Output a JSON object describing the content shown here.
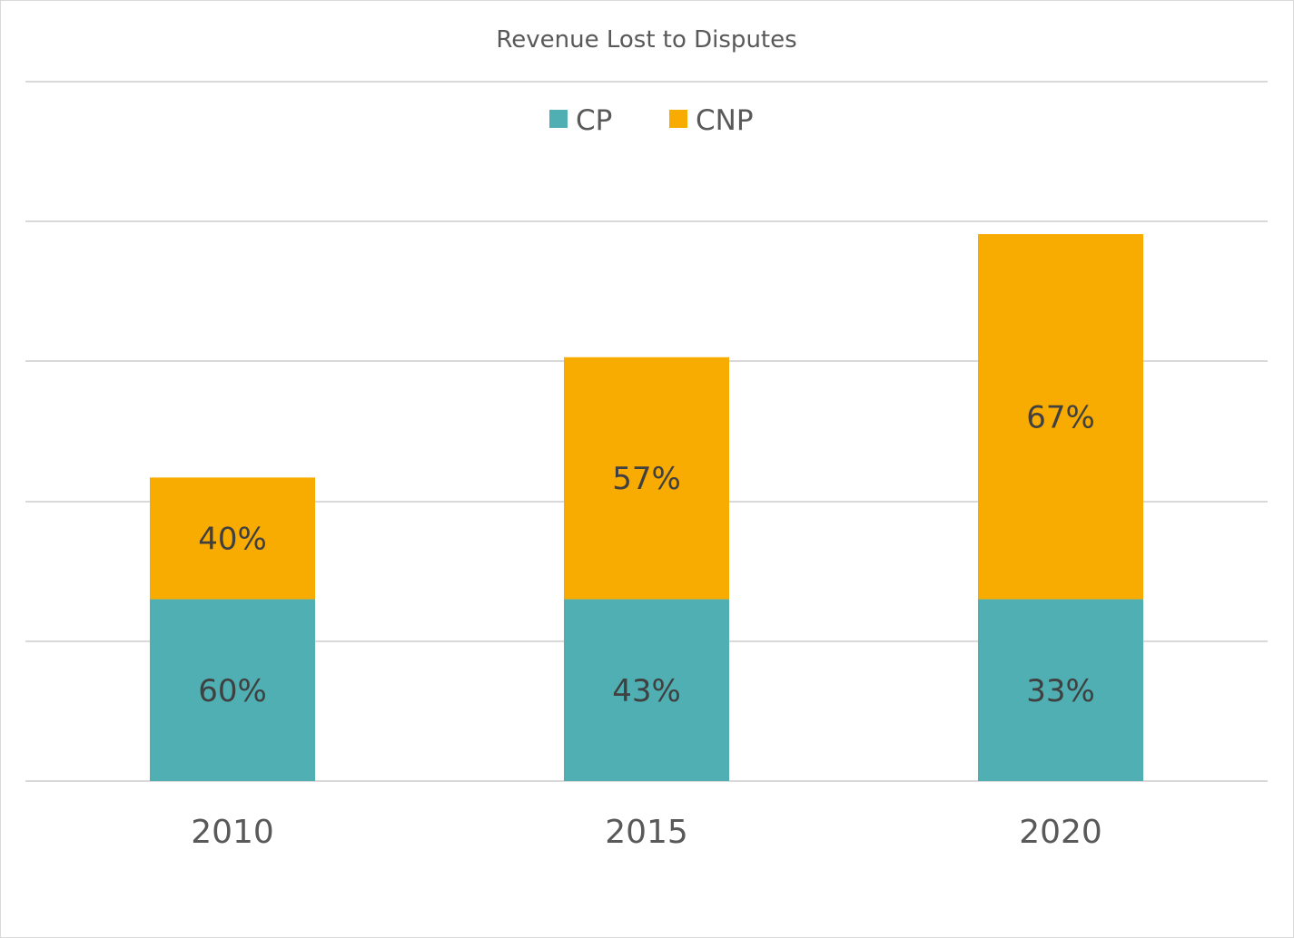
{
  "chart_data": {
    "type": "bar",
    "stacked": true,
    "title": "Revenue Lost to Disputes",
    "xlabel": "",
    "ylabel": "",
    "categories": [
      "2010",
      "2015",
      "2020"
    ],
    "series": [
      {
        "name": "CP",
        "color": "#4fafb3",
        "values": [
          1.3,
          1.3,
          1.3
        ],
        "labels": [
          "60%",
          "43%",
          "33%"
        ]
      },
      {
        "name": "CNP",
        "color": "#f8ab00",
        "values": [
          0.87,
          1.73,
          2.61
        ],
        "labels": [
          "40%",
          "57%",
          "67%"
        ]
      }
    ],
    "ylim": [
      0,
      5
    ],
    "grid": true,
    "legend": "top-center",
    "y_axis_labels_shown": false
  }
}
